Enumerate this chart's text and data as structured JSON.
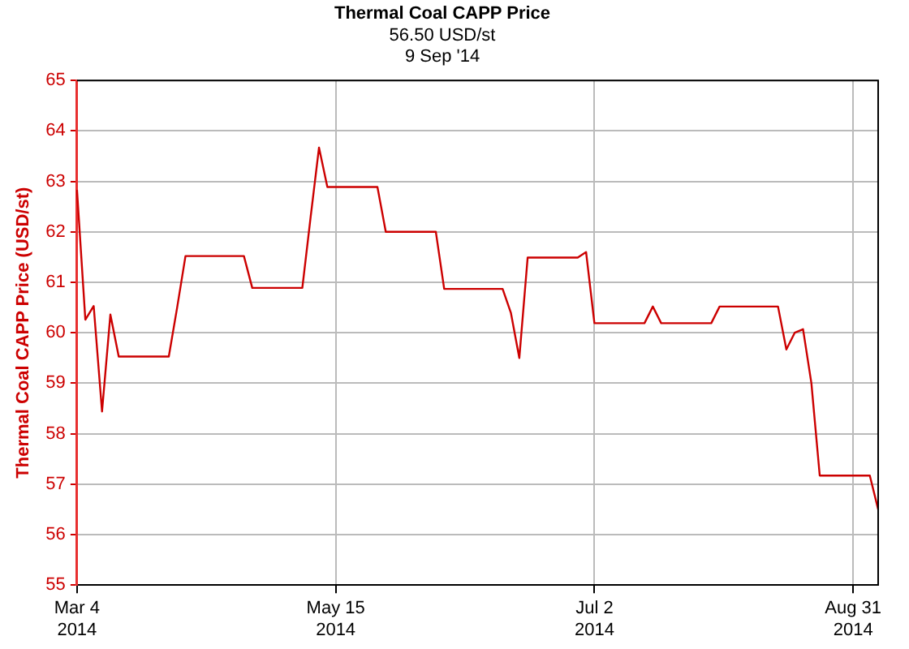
{
  "chart_data": {
    "type": "line",
    "title": "Thermal Coal CAPP Price",
    "subtitle": "56.50 USD/st\n9 Sep '14",
    "ylabel": "Thermal Coal CAPP Price (USD/st)",
    "categories": [
      "Mar 4\n2014",
      null,
      null,
      null,
      null,
      null,
      null,
      null,
      null,
      null,
      null,
      null,
      null,
      null,
      null,
      null,
      null,
      null,
      null,
      null,
      null,
      null,
      null,
      null,
      null,
      null,
      null,
      null,
      null,
      null,
      null,
      "May 15\n2014",
      null,
      null,
      null,
      null,
      null,
      null,
      null,
      null,
      null,
      null,
      null,
      null,
      null,
      null,
      null,
      null,
      null,
      null,
      null,
      null,
      null,
      null,
      null,
      null,
      null,
      null,
      null,
      null,
      null,
      null,
      "Jul 2\n2014",
      null,
      null,
      null,
      null,
      null,
      null,
      null,
      null,
      null,
      null,
      null,
      null,
      null,
      null,
      null,
      null,
      null,
      null,
      null,
      null,
      null,
      null,
      null,
      null,
      null,
      null,
      null,
      null,
      null,
      null,
      "Aug 31\n2014",
      null,
      null,
      null
    ],
    "series": [
      {
        "color": "#cc0000",
        "values": [
          62.83,
          60.26,
          60.53,
          58.44,
          60.36,
          59.53,
          59.53,
          59.53,
          59.53,
          59.53,
          59.53,
          59.53,
          60.5,
          61.52,
          61.52,
          61.52,
          61.52,
          61.52,
          61.52,
          61.52,
          61.52,
          60.89,
          60.89,
          60.89,
          60.89,
          60.89,
          60.89,
          60.89,
          62.3,
          63.67,
          62.89,
          62.89,
          62.89,
          62.89,
          62.89,
          62.89,
          62.89,
          62.0,
          62.0,
          62.0,
          62.0,
          62.0,
          62.0,
          62.0,
          60.87,
          60.87,
          60.87,
          60.87,
          60.87,
          60.87,
          60.87,
          60.87,
          60.39,
          59.5,
          61.49,
          61.49,
          61.49,
          61.49,
          61.49,
          61.49,
          61.49,
          61.6,
          60.19,
          60.19,
          60.19,
          60.19,
          60.19,
          60.19,
          60.19,
          60.52,
          60.19,
          60.19,
          60.19,
          60.19,
          60.19,
          60.19,
          60.19,
          60.52,
          60.52,
          60.52,
          60.52,
          60.52,
          60.52,
          60.52,
          60.52,
          59.67,
          60.0,
          60.07,
          59.0,
          57.17,
          57.17,
          57.17,
          57.17,
          57.17,
          57.17,
          57.17,
          56.5
        ]
      }
    ],
    "ylim": [
      55,
      65
    ],
    "yticks": [
      55,
      56,
      57,
      58,
      59,
      60,
      61,
      62,
      63,
      64,
      65
    ],
    "grid": true,
    "legend": false,
    "marker": "none",
    "line_style": "solid"
  }
}
